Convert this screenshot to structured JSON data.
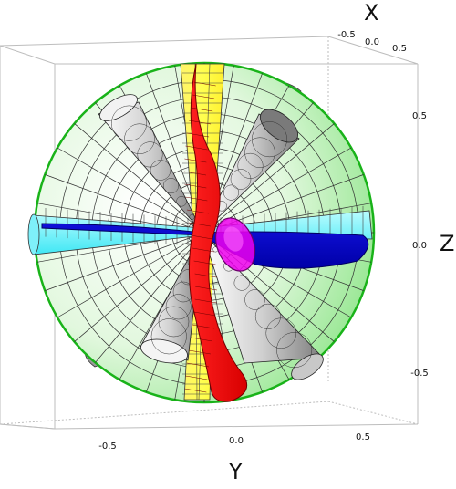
{
  "axes": {
    "x": {
      "title": "X",
      "ticks": [
        "-0.5",
        "0.0",
        "0.5"
      ]
    },
    "y": {
      "title": "Y",
      "ticks": [
        "-0.5",
        "0.0",
        "0.5"
      ]
    },
    "z": {
      "title": "Z",
      "ticks": [
        "0.5",
        "0.0",
        "-0.5"
      ]
    }
  },
  "colors": {
    "sphere_surface": "#d7f6d2",
    "sphere_outline": "#19b319",
    "yellow_band": "#ffff00",
    "cyan_band": "#6ff6ff",
    "red_surface": "#ff0000",
    "blue_surface": "#0000cc",
    "magenta_disk": "#e600e6",
    "cones": "#b5b5b5",
    "bounding_box": "#bbbbbb"
  },
  "icons": [
    "sphere-icon",
    "cone-icon",
    "ribbon-icon",
    "disk-icon"
  ]
}
